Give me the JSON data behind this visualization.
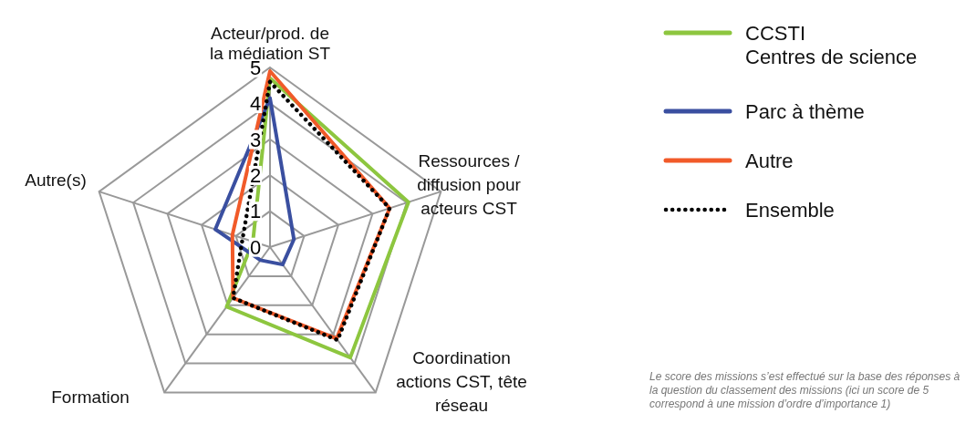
{
  "chart_data": {
    "type": "radar",
    "categories": [
      "Acteur/prod. de\nla médiation ST",
      "Ressources /\ndiffusion pour\nacteurs CST",
      "Coordination\nactions CST, tête\nréseau",
      "Formation",
      "Autre(s)"
    ],
    "ylim": [
      0,
      5
    ],
    "yticks": [
      0,
      1,
      2,
      3,
      4,
      5
    ],
    "grid": true,
    "legend": "top right",
    "series": [
      {
        "name": "CCSTI\nCentres de science",
        "color": "#8dc63f",
        "values": [
          4.7,
          4.05,
          3.8,
          2.05,
          0.5
        ]
      },
      {
        "name": "Parc à thème",
        "color": "#3a4fa0",
        "values": [
          4.15,
          0.7,
          0.6,
          0.45,
          1.6
        ]
      },
      {
        "name": "Autre",
        "color": "#f15a29",
        "values": [
          4.9,
          3.5,
          3.15,
          1.75,
          1.1
        ]
      },
      {
        "name": "Ensemble",
        "color": "#000000",
        "line_style": "dotted",
        "values": [
          4.6,
          3.5,
          3.2,
          1.75,
          0.8
        ]
      }
    ],
    "annotations": [
      "Le score des missions s’est effectué sur la base des réponses à la question du classement des missions (ici un score de 5 correspond à une mission d’ordre d’importance 1)"
    ]
  }
}
